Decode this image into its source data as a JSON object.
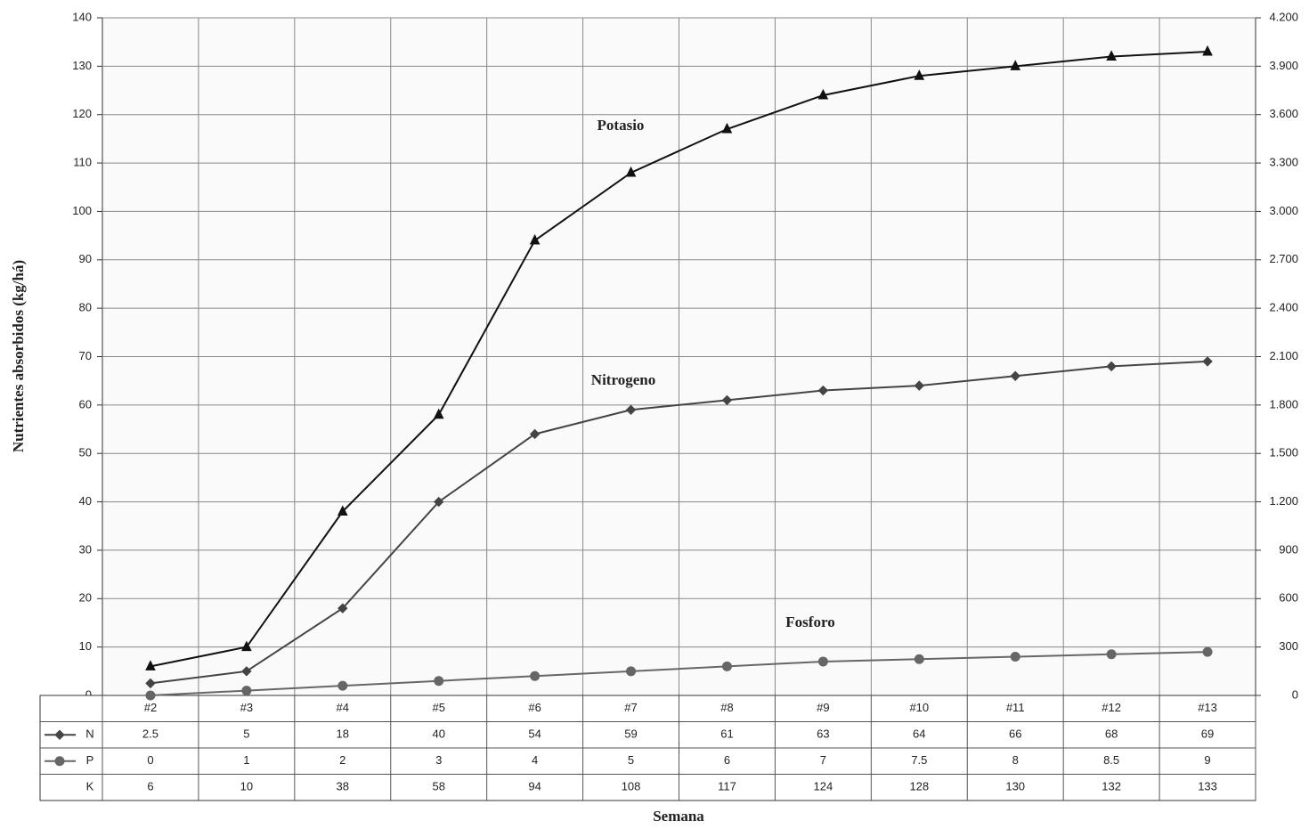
{
  "chart_data": {
    "type": "line",
    "y_label": "Nutrientes absorbidos (kg/há)",
    "x_label": "Semana",
    "categories": [
      "#2",
      "#3",
      "#4",
      "#5",
      "#6",
      "#7",
      "#8",
      "#9",
      "#10",
      "#11",
      "#12",
      "#13"
    ],
    "series": [
      {
        "name": "N",
        "color": "#444444",
        "marker": "diamond",
        "values": [
          2.5,
          5,
          18,
          40,
          54,
          59,
          61,
          63,
          64,
          66,
          68,
          69
        ]
      },
      {
        "name": "P",
        "color": "#666666",
        "marker": "circle",
        "values": [
          0,
          1,
          2,
          3,
          4,
          5,
          6,
          7,
          7.5,
          8,
          8.5,
          9
        ]
      },
      {
        "name": "K",
        "color": "#111111",
        "marker": "triangle",
        "values": [
          6,
          10,
          38,
          58,
          94,
          108,
          117,
          124,
          128,
          130,
          132,
          133
        ]
      }
    ],
    "annotations": [
      "Nitrogeno",
      "Fosforo",
      "Potasio"
    ],
    "ylim": [
      0,
      140
    ],
    "yticks": [
      0,
      10,
      20,
      30,
      40,
      50,
      60,
      70,
      80,
      90,
      100,
      110,
      120,
      130,
      140
    ],
    "y2lim": [
      0,
      4200
    ],
    "y2ticks": [
      0,
      300,
      600,
      900,
      {
        "value": 1200,
        "label": "1.200"
      },
      {
        "value": 1500,
        "label": "1.500"
      },
      {
        "value": 1800,
        "label": "1.800"
      },
      {
        "value": 2100,
        "label": "2.100"
      },
      {
        "value": 2400,
        "label": "2.400"
      },
      {
        "value": 2700,
        "label": "2.700"
      },
      {
        "value": 3000,
        "label": "3.000"
      },
      {
        "value": 3300,
        "label": "3.300"
      },
      {
        "value": 3600,
        "label": "3.600"
      },
      {
        "value": 3900,
        "label": "3.900"
      },
      {
        "value": 4200,
        "label": "4.200"
      }
    ],
    "grid": true
  }
}
